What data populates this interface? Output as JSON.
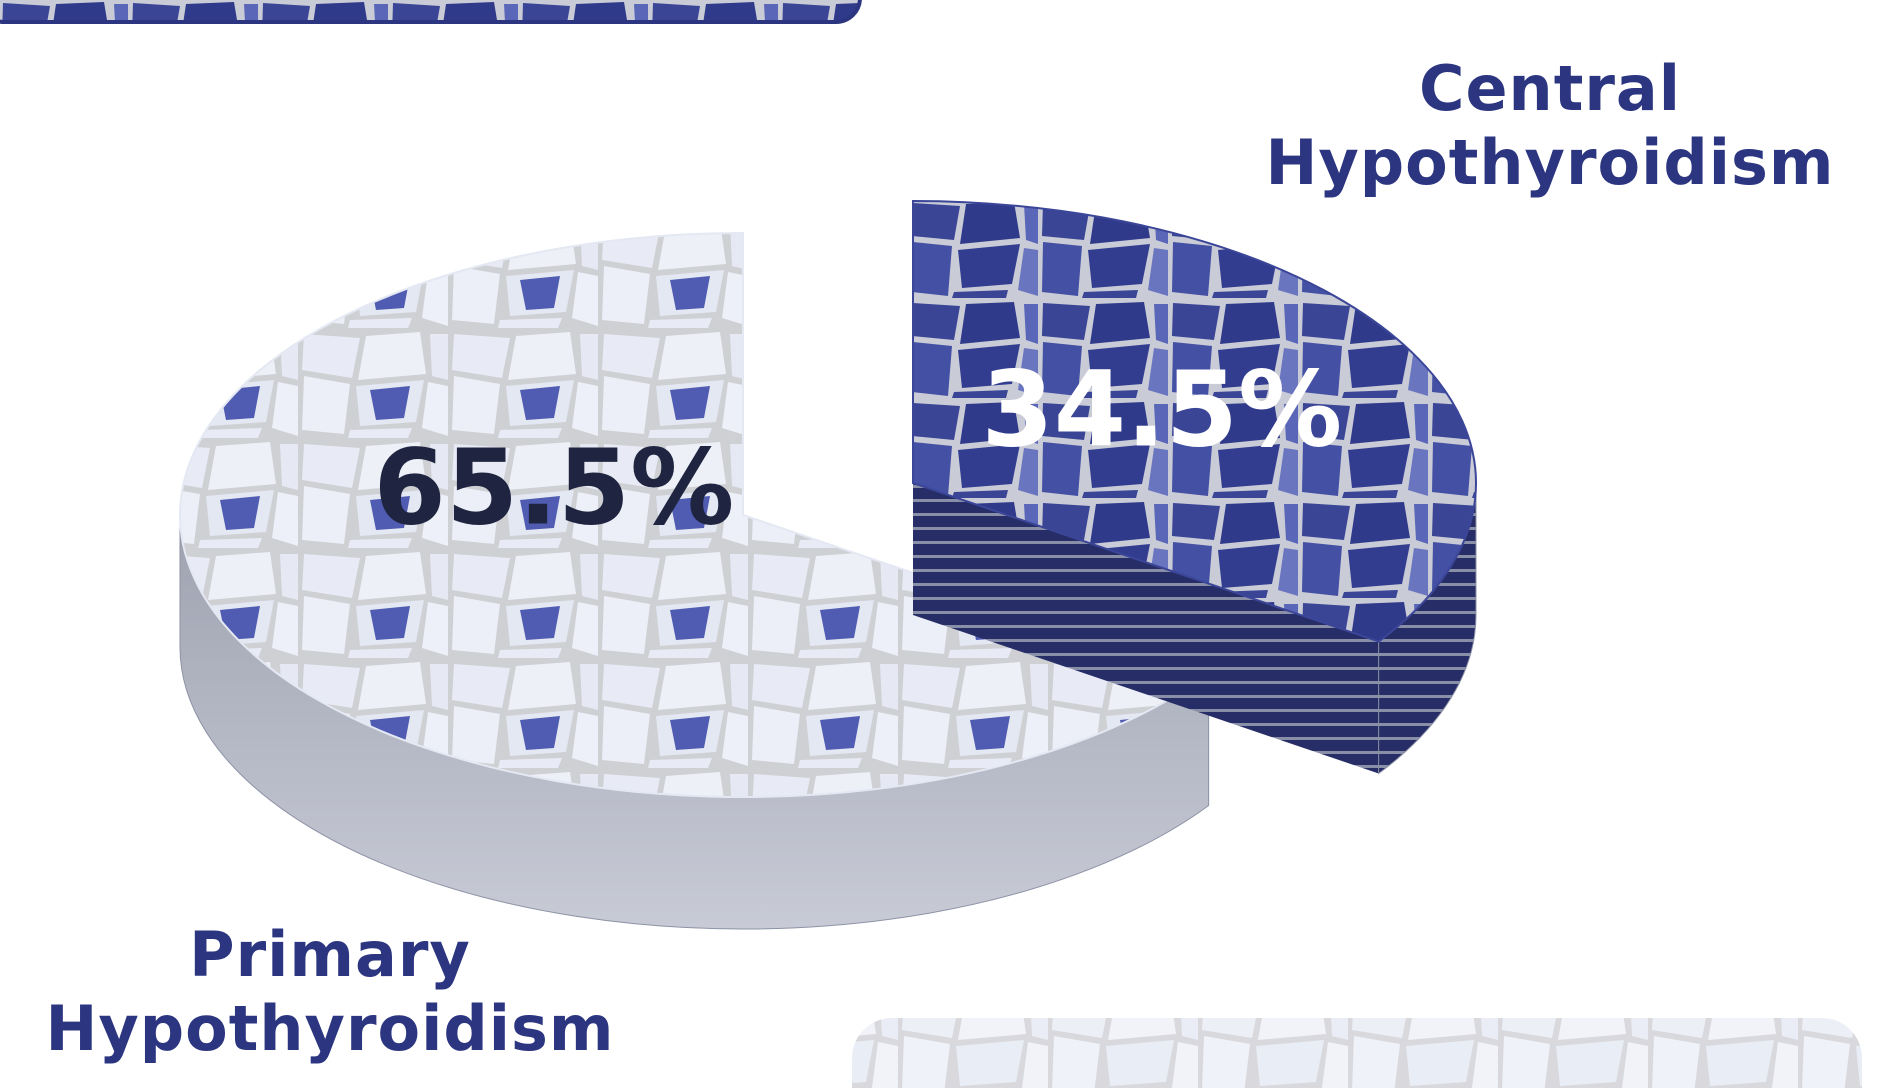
{
  "chart_data": {
    "type": "pie",
    "categories": [
      "Primary Hypothyroidism",
      "Central Hypothyroidism"
    ],
    "values": [
      65.5,
      34.5
    ],
    "value_labels": [
      "65.5%",
      "34.5%"
    ],
    "colors": [
      "#e4e8f3",
      "#3b4699"
    ]
  }
}
